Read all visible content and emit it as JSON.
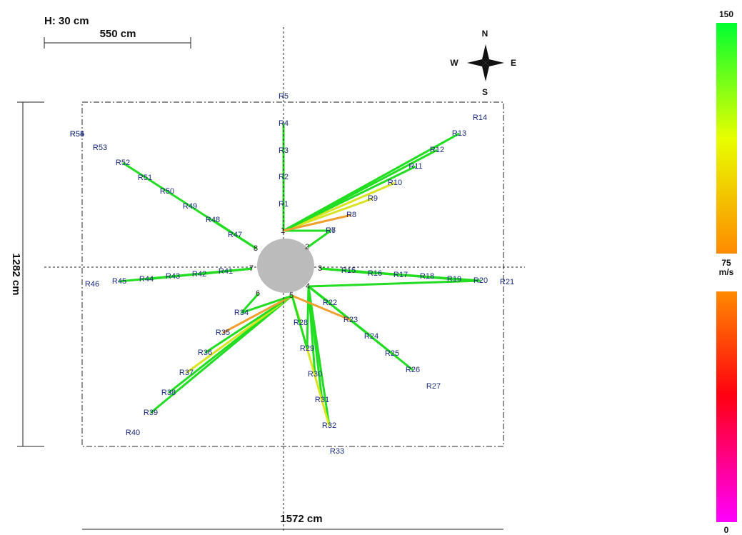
{
  "header": {
    "height_label": "H: 30 cm",
    "scale_label": "550 cm"
  },
  "compass": {
    "n": "N",
    "s": "S",
    "w": "W",
    "e": "E"
  },
  "dimensions": {
    "height": "1282 cm",
    "width": "1572 cm"
  },
  "legend": {
    "max": "150",
    "mid": "75",
    "unit": "m/s",
    "min": "0"
  },
  "sensors": [
    "1",
    "2",
    "3",
    "4",
    "5",
    "6",
    "7",
    "8"
  ],
  "receivers": [
    "R1",
    "R2",
    "R3",
    "R4",
    "R5",
    "R6",
    "R7",
    "R8",
    "R9",
    "R10",
    "R11",
    "R12",
    "R13",
    "R14",
    "R15",
    "R16",
    "R17",
    "R18",
    "R19",
    "R20",
    "R21",
    "R22",
    "R23",
    "R24",
    "R25",
    "R26",
    "R27",
    "R28",
    "R29",
    "R30",
    "R31",
    "R32",
    "R33",
    "R34",
    "R35",
    "R36",
    "R37",
    "R38",
    "R39",
    "R40",
    "R41",
    "R42",
    "R43",
    "R44",
    "R45",
    "R46",
    "R47",
    "R48",
    "R49",
    "R50",
    "R51",
    "R52",
    "R53",
    "R54",
    "R55"
  ]
}
